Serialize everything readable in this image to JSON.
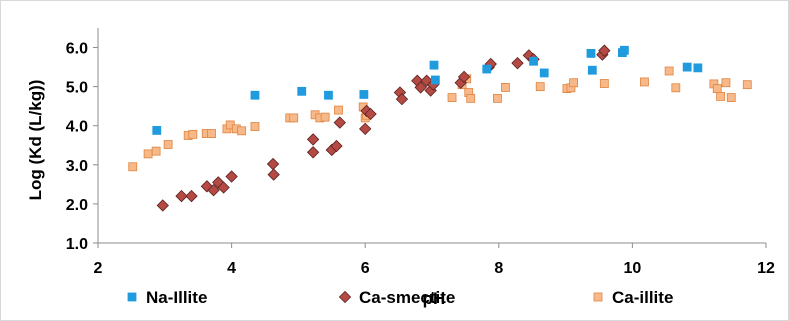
{
  "chart_data": {
    "type": "scatter",
    "title": "",
    "xlabel": "pH",
    "ylabel": "Log (Kd (L/kg))",
    "xlim": [
      2,
      12
    ],
    "ylim": [
      1.0,
      6.5
    ],
    "x_ticks": [
      2,
      4,
      6,
      8,
      10,
      12
    ],
    "y_ticks": [
      1.0,
      2.0,
      3.0,
      4.0,
      5.0,
      6.0
    ],
    "x_tick_labels": [
      "2",
      "4",
      "6",
      "8",
      "10",
      "12"
    ],
    "y_tick_labels": [
      "1.0",
      "2.0",
      "3.0",
      "4.0",
      "5.0",
      "6.0"
    ],
    "grid": false,
    "legend_position": "bottom",
    "series": [
      {
        "name": "Na-Illite",
        "marker": "square",
        "color": "#1f9bde",
        "points": [
          [
            2.88,
            3.88
          ],
          [
            4.35,
            4.78
          ],
          [
            5.05,
            4.88
          ],
          [
            5.45,
            4.78
          ],
          [
            5.98,
            4.8
          ],
          [
            7.03,
            5.55
          ],
          [
            7.05,
            5.17
          ],
          [
            7.82,
            5.45
          ],
          [
            8.52,
            5.65
          ],
          [
            8.68,
            5.35
          ],
          [
            9.38,
            5.85
          ],
          [
            9.4,
            5.42
          ],
          [
            9.85,
            5.87
          ],
          [
            9.88,
            5.93
          ],
          [
            10.82,
            5.5
          ],
          [
            10.98,
            5.48
          ]
        ]
      },
      {
        "name": "Ca-smectite",
        "marker": "diamond",
        "color": "#b54a44",
        "points": [
          [
            2.97,
            1.96
          ],
          [
            3.25,
            2.2
          ],
          [
            3.4,
            2.2
          ],
          [
            3.63,
            2.45
          ],
          [
            3.73,
            2.35
          ],
          [
            3.8,
            2.55
          ],
          [
            3.88,
            2.42
          ],
          [
            4.0,
            2.7
          ],
          [
            4.62,
            3.02
          ],
          [
            4.63,
            2.75
          ],
          [
            5.22,
            3.65
          ],
          [
            5.22,
            3.32
          ],
          [
            5.5,
            3.38
          ],
          [
            5.57,
            3.48
          ],
          [
            5.62,
            4.08
          ],
          [
            6.0,
            3.92
          ],
          [
            6.02,
            4.38
          ],
          [
            6.08,
            4.3
          ],
          [
            6.52,
            4.85
          ],
          [
            6.55,
            4.68
          ],
          [
            6.78,
            5.15
          ],
          [
            6.83,
            4.98
          ],
          [
            6.92,
            5.15
          ],
          [
            6.98,
            4.9
          ],
          [
            7.02,
            5.05
          ],
          [
            7.43,
            5.1
          ],
          [
            7.48,
            5.25
          ],
          [
            7.85,
            5.5
          ],
          [
            7.88,
            5.58
          ],
          [
            8.28,
            5.6
          ],
          [
            8.45,
            5.8
          ],
          [
            8.52,
            5.7
          ],
          [
            9.55,
            5.82
          ],
          [
            9.58,
            5.92
          ]
        ]
      },
      {
        "name": "Ca-illite",
        "marker": "square",
        "color": "#f7b98a",
        "points": [
          [
            2.52,
            2.95
          ],
          [
            2.75,
            3.28
          ],
          [
            2.87,
            3.35
          ],
          [
            3.05,
            3.52
          ],
          [
            3.35,
            3.75
          ],
          [
            3.42,
            3.78
          ],
          [
            3.62,
            3.8
          ],
          [
            3.7,
            3.8
          ],
          [
            3.93,
            3.92
          ],
          [
            3.98,
            4.02
          ],
          [
            4.07,
            3.92
          ],
          [
            4.15,
            3.87
          ],
          [
            4.35,
            3.98
          ],
          [
            4.87,
            4.2
          ],
          [
            4.93,
            4.2
          ],
          [
            5.25,
            4.28
          ],
          [
            5.32,
            4.2
          ],
          [
            5.4,
            4.22
          ],
          [
            5.6,
            4.4
          ],
          [
            5.97,
            4.48
          ],
          [
            6.0,
            4.2
          ],
          [
            6.02,
            4.27
          ],
          [
            7.3,
            4.72
          ],
          [
            7.45,
            5.05
          ],
          [
            7.52,
            5.2
          ],
          [
            7.55,
            4.85
          ],
          [
            7.58,
            4.7
          ],
          [
            7.98,
            4.7
          ],
          [
            8.1,
            4.98
          ],
          [
            8.62,
            5.0
          ],
          [
            9.02,
            4.95
          ],
          [
            9.08,
            4.97
          ],
          [
            9.12,
            5.1
          ],
          [
            9.58,
            5.08
          ],
          [
            10.18,
            5.12
          ],
          [
            10.55,
            5.4
          ],
          [
            10.65,
            4.97
          ],
          [
            11.22,
            5.07
          ],
          [
            11.27,
            4.95
          ],
          [
            11.32,
            4.75
          ],
          [
            11.4,
            5.1
          ],
          [
            11.48,
            4.72
          ],
          [
            11.72,
            5.05
          ]
        ]
      }
    ]
  }
}
